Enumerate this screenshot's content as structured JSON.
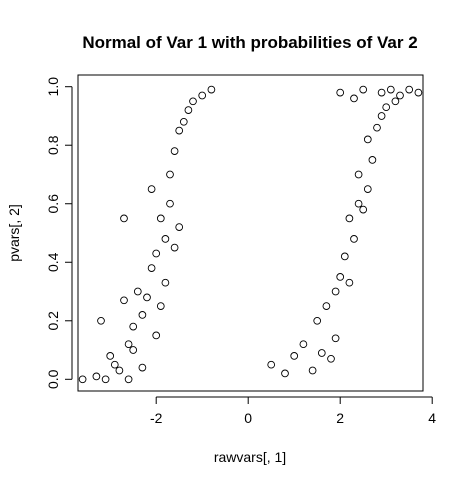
{
  "chart_data": {
    "type": "scatter",
    "title": "Normal of Var 1 with probabilities of Var 2",
    "xlabel": "rawvars[, 1]",
    "ylabel": "pvars[, 2]",
    "xlim": [
      -3.7,
      3.8
    ],
    "ylim": [
      -0.04,
      1.04
    ],
    "x_ticks": [
      -2,
      0,
      2,
      4
    ],
    "x_tick_labels": [
      "-2",
      "0",
      "2",
      "4"
    ],
    "y_ticks": [
      0.0,
      0.2,
      0.4,
      0.6,
      0.8,
      1.0
    ],
    "y_tick_labels": [
      "0.0",
      "0.2",
      "0.4",
      "0.6",
      "0.8",
      "1.0"
    ],
    "marker": "open-circle",
    "grid": false,
    "legend": "none",
    "color": "#000000",
    "series": [
      {
        "points": [
          [
            -3.6,
            0.0
          ],
          [
            -3.2,
            0.2
          ],
          [
            -3.1,
            0.0
          ],
          [
            -3.0,
            0.08
          ],
          [
            -2.9,
            0.05
          ],
          [
            -2.8,
            0.03
          ],
          [
            -2.7,
            0.55
          ],
          [
            -2.7,
            0.27
          ],
          [
            -2.6,
            0.12
          ],
          [
            -2.5,
            0.18
          ],
          [
            -2.5,
            0.1
          ],
          [
            -2.4,
            0.3
          ],
          [
            -2.3,
            0.22
          ],
          [
            -2.3,
            0.04
          ],
          [
            -2.2,
            0.28
          ],
          [
            -2.1,
            0.65
          ],
          [
            -2.1,
            0.38
          ],
          [
            -2.0,
            0.43
          ],
          [
            -2.0,
            0.15
          ],
          [
            -1.9,
            0.55
          ],
          [
            -1.9,
            0.25
          ],
          [
            -1.8,
            0.48
          ],
          [
            -1.8,
            0.33
          ],
          [
            -1.7,
            0.7
          ],
          [
            -1.7,
            0.6
          ],
          [
            -1.6,
            0.78
          ],
          [
            -1.6,
            0.45
          ],
          [
            -1.5,
            0.85
          ],
          [
            -1.5,
            0.52
          ],
          [
            -1.4,
            0.88
          ],
          [
            -1.3,
            0.92
          ],
          [
            -1.2,
            0.95
          ],
          [
            -1.0,
            0.97
          ],
          [
            -0.8,
            0.99
          ],
          [
            -3.3,
            0.01
          ],
          [
            -2.6,
            0.0
          ],
          [
            0.5,
            0.05
          ],
          [
            0.8,
            0.02
          ],
          [
            1.0,
            0.08
          ],
          [
            1.2,
            0.12
          ],
          [
            1.4,
            0.03
          ],
          [
            1.6,
            0.09
          ],
          [
            1.8,
            0.07
          ],
          [
            1.9,
            0.14
          ],
          [
            1.5,
            0.2
          ],
          [
            1.7,
            0.25
          ],
          [
            1.9,
            0.3
          ],
          [
            2.0,
            0.35
          ],
          [
            2.2,
            0.33
          ],
          [
            2.1,
            0.42
          ],
          [
            2.3,
            0.48
          ],
          [
            2.2,
            0.55
          ],
          [
            2.4,
            0.6
          ],
          [
            2.5,
            0.58
          ],
          [
            2.6,
            0.65
          ],
          [
            2.4,
            0.7
          ],
          [
            2.7,
            0.75
          ],
          [
            2.6,
            0.82
          ],
          [
            2.8,
            0.86
          ],
          [
            2.9,
            0.9
          ],
          [
            3.0,
            0.93
          ],
          [
            3.2,
            0.95
          ],
          [
            3.3,
            0.97
          ],
          [
            3.5,
            0.99
          ],
          [
            3.7,
            0.98
          ],
          [
            3.1,
            0.99
          ],
          [
            2.9,
            0.98
          ],
          [
            2.0,
            0.98
          ],
          [
            2.3,
            0.96
          ],
          [
            2.5,
            0.99
          ]
        ]
      }
    ]
  }
}
